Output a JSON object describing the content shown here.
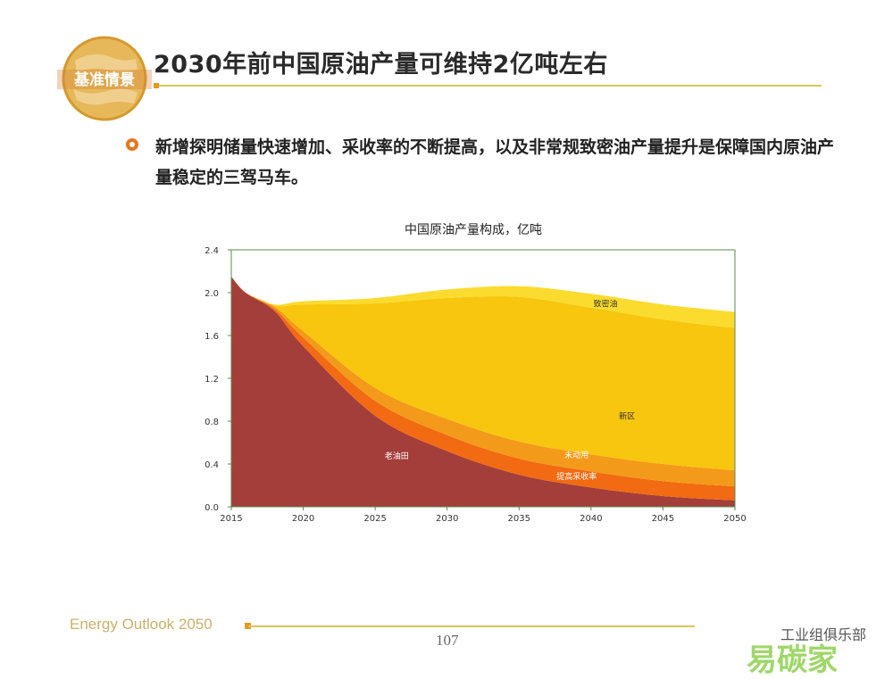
{
  "header": {
    "logo_text": "基准情景",
    "title": "2030年前中国原油产量可维持2亿吨左右"
  },
  "bullet": {
    "text": "新增探明储量快速增加、采收率的不断提高，以及非常规致密油产量提升是保障国内原油产量稳定的三驾马车。"
  },
  "footer": {
    "brand": "Energy Outlook 2050",
    "page_number": "107",
    "watermark": "工业组俱乐部",
    "watermark_logo": "易碳家"
  },
  "colors": {
    "old_fields": "#a43e3a",
    "eor": "#f26a12",
    "undeveloped": "#f49a1a",
    "new_areas": "#f8c60e",
    "tight_oil": "#fbdb2e",
    "accent": "#e09a22"
  },
  "chart_data": {
    "type": "area",
    "stacked": true,
    "title": "中国原油产量构成，亿吨",
    "x": [
      2015,
      2016,
      2018,
      2020,
      2025,
      2030,
      2035,
      2040,
      2045,
      2050
    ],
    "xticks": [
      2015,
      2020,
      2025,
      2030,
      2035,
      2040,
      2045,
      2050
    ],
    "ylim": [
      0,
      2.4
    ],
    "yticks": [
      "0.0",
      "0.4",
      "0.8",
      "1.2",
      "1.6",
      "2.0",
      "2.4"
    ],
    "grid": false,
    "series": [
      {
        "name": "老油田",
        "color": "#a43e3a",
        "values": [
          2.15,
          2.0,
          1.83,
          1.5,
          0.85,
          0.52,
          0.3,
          0.18,
          0.1,
          0.06
        ]
      },
      {
        "name": "提高采收率",
        "color": "#f26a12",
        "values": [
          0,
          0,
          0.02,
          0.08,
          0.14,
          0.15,
          0.15,
          0.15,
          0.14,
          0.13
        ]
      },
      {
        "name": "未动用",
        "color": "#f49a1a",
        "values": [
          0,
          0,
          0.02,
          0.06,
          0.12,
          0.15,
          0.16,
          0.16,
          0.16,
          0.15
        ]
      },
      {
        "name": "新区",
        "color": "#f8c60e",
        "values": [
          0,
          0,
          0.01,
          0.25,
          0.79,
          1.13,
          1.35,
          1.37,
          1.35,
          1.33
        ]
      },
      {
        "name": "致密油",
        "color": "#fbdb2e",
        "values": [
          0,
          0,
          0.01,
          0.03,
          0.05,
          0.08,
          0.1,
          0.13,
          0.14,
          0.15
        ]
      }
    ]
  }
}
